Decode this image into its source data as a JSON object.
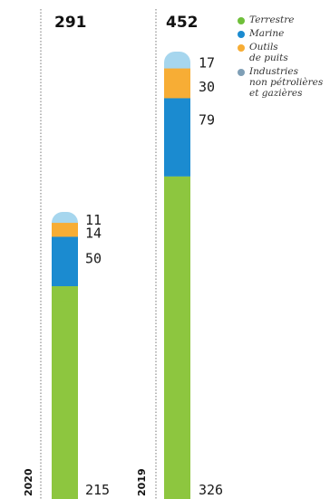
{
  "chart_data": {
    "type": "bar",
    "stacked": true,
    "orientation": "vertical",
    "categories": [
      "2020",
      "2019"
    ],
    "totals": [
      291,
      452
    ],
    "series": [
      {
        "name": "Terrestre",
        "values": [
          215,
          326
        ],
        "color": "#8dc63f"
      },
      {
        "name": "Marine",
        "values": [
          50,
          79
        ],
        "color": "#1b8bd0"
      },
      {
        "name": "Outils de puits",
        "values": [
          14,
          30
        ],
        "color": "#f7ad35"
      },
      {
        "name": "Industries non pétrolières et gazières",
        "values": [
          11,
          17
        ],
        "color": "#a6d6ee"
      }
    ],
    "legend": [
      {
        "label": "Terrestre",
        "color": "#6fbf3a"
      },
      {
        "label": "Marine",
        "color": "#1b8bd0"
      },
      {
        "label": "Outils\nde puits",
        "color": "#f7ad35"
      },
      {
        "label": "Industries\nnon pétrolières\net gazières",
        "color": "#7f9fb6"
      }
    ],
    "legend_position": "top-right",
    "grid": false
  }
}
